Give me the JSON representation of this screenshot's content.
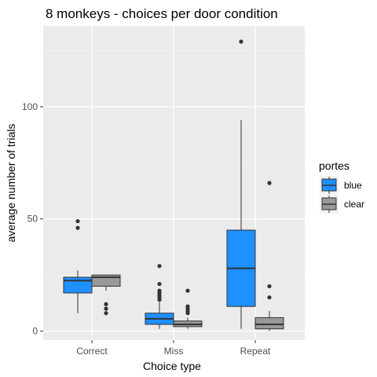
{
  "chart_data": {
    "type": "boxplot",
    "title": "8 monkeys - choices per door condition",
    "xlabel": "Choice type",
    "ylabel": "average number of trials",
    "categories": [
      "Correct",
      "Miss",
      "Repeat"
    ],
    "y_ticks": [
      0,
      50,
      100
    ],
    "ylim": [
      -4,
      136
    ],
    "grid": true,
    "background": "#ebebeb",
    "legend": {
      "title": "portes",
      "position": "right",
      "entries": [
        {
          "label": "blue",
          "color": "#1e90ff"
        },
        {
          "label": "clear",
          "color": "#999999"
        }
      ]
    },
    "series": [
      {
        "name": "blue",
        "color": "#1e90ff",
        "boxes": [
          {
            "category": "Correct",
            "min": 8,
            "q1": 17,
            "median": 22.5,
            "q3": 24,
            "max": 27,
            "outliers": [
              46,
              49
            ]
          },
          {
            "category": "Miss",
            "min": 1,
            "q1": 3,
            "median": 5.5,
            "q3": 8,
            "max": 13,
            "outliers": [
              14,
              15,
              16,
              17,
              18,
              21,
              29
            ]
          },
          {
            "category": "Repeat",
            "min": 1,
            "q1": 11,
            "median": 28,
            "q3": 45,
            "max": 94,
            "outliers": [
              129
            ]
          }
        ]
      },
      {
        "name": "clear",
        "color": "#999999",
        "boxes": [
          {
            "category": "Correct",
            "min": 18,
            "q1": 20,
            "median": 24,
            "q3": 25,
            "max": 25,
            "outliers": [
              8,
              10,
              12
            ]
          },
          {
            "category": "Miss",
            "min": 1,
            "q1": 2,
            "median": 3,
            "q3": 4.5,
            "max": 6,
            "outliers": [
              8,
              9,
              10,
              11,
              18
            ]
          },
          {
            "category": "Repeat",
            "min": 0,
            "q1": 1,
            "median": 3,
            "q3": 6,
            "max": 9,
            "outliers": [
              15,
              20,
              66
            ]
          }
        ]
      }
    ]
  }
}
